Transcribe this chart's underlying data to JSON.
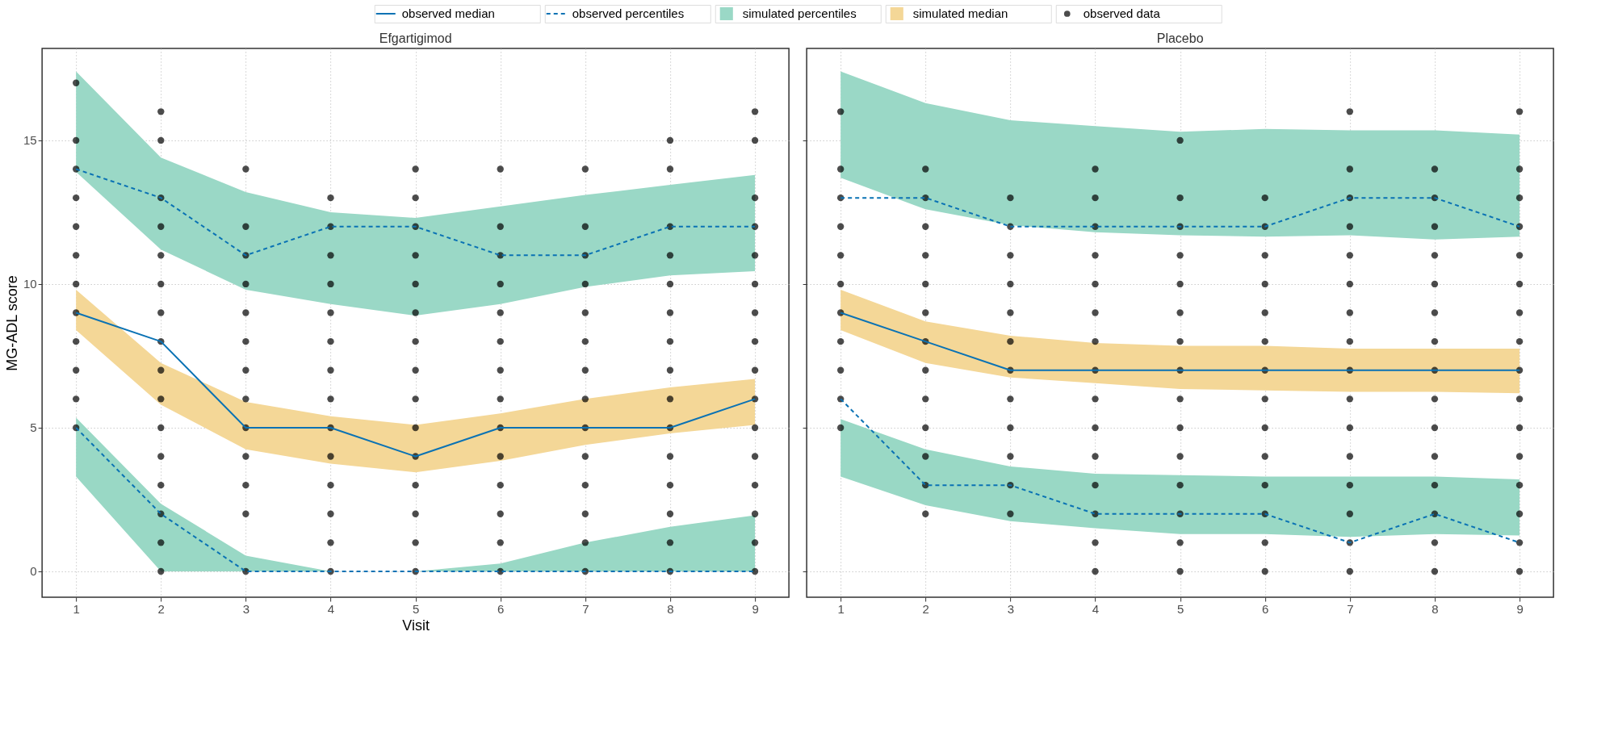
{
  "chart_data": [
    {
      "type": "line",
      "title": "Efgartigimod",
      "xlabel": "Visit",
      "ylabel": "MG-ADL score",
      "x": [
        1,
        2,
        3,
        4,
        5,
        6,
        7,
        8,
        9
      ],
      "xlim": [
        0.6,
        9.4
      ],
      "xticks": [
        1,
        2,
        3,
        4,
        5,
        6,
        7,
        8,
        9
      ],
      "ylim": [
        -0.9,
        18.2
      ],
      "yticks": [
        0,
        5,
        10,
        15
      ],
      "grid": true,
      "legend": "top",
      "series": [
        {
          "name": "simulated percentiles",
          "type": "area",
          "color": "#9ad8c6",
          "values": [
            null,
            null,
            null,
            null,
            null,
            null,
            null,
            null,
            null
          ],
          "lower": [
            13.9,
            11.2,
            9.8,
            9.3,
            8.9,
            9.3,
            9.9,
            10.3,
            10.45
          ],
          "upper": [
            17.4,
            14.4,
            13.2,
            12.5,
            12.3,
            12.7,
            13.1,
            13.45,
            13.8
          ]
        },
        {
          "type": "area",
          "color": "#99d8c5",
          "values": [
            null,
            null,
            null,
            null,
            null,
            null,
            null,
            null,
            null
          ],
          "lower": [
            3.3,
            0,
            0,
            0,
            0,
            0,
            0,
            0,
            0
          ],
          "upper": [
            5.35,
            2.35,
            0.55,
            0,
            0,
            0.27,
            1.0,
            1.55,
            1.95
          ]
        },
        {
          "name": "simulated median",
          "type": "area",
          "color": "#f4d797",
          "values": [
            null,
            null,
            null,
            null,
            null,
            null,
            null,
            null,
            null
          ],
          "lower": [
            8.4,
            5.8,
            4.25,
            3.75,
            3.45,
            3.85,
            4.4,
            4.8,
            5.1
          ],
          "upper": [
            9.8,
            7.25,
            5.9,
            5.4,
            5.1,
            5.5,
            6.0,
            6.4,
            6.7
          ]
        },
        {
          "name": "observed data",
          "type": "scatter",
          "color": "#000000",
          "marker": "circle",
          "x": [
            1,
            1,
            1,
            1,
            1,
            1,
            1,
            1,
            1,
            1,
            1,
            1,
            2,
            2,
            2,
            2,
            2,
            2,
            2,
            2,
            2,
            2,
            2,
            2,
            2,
            2,
            2,
            2,
            3,
            3,
            3,
            3,
            3,
            3,
            3,
            3,
            3,
            3,
            3,
            3,
            3,
            4,
            4,
            4,
            4,
            4,
            4,
            4,
            4,
            4,
            4,
            4,
            4,
            4,
            4,
            5,
            5,
            5,
            5,
            5,
            5,
            5,
            5,
            5,
            5,
            5,
            5,
            5,
            5,
            5,
            6,
            6,
            6,
            6,
            6,
            6,
            6,
            6,
            6,
            6,
            6,
            6,
            6,
            6,
            7,
            7,
            7,
            7,
            7,
            7,
            7,
            7,
            7,
            7,
            7,
            7,
            7,
            7,
            8,
            8,
            8,
            8,
            8,
            8,
            8,
            8,
            8,
            8,
            8,
            8,
            8,
            8,
            8,
            9,
            9,
            9,
            9,
            9,
            9,
            9,
            9,
            9,
            9,
            9,
            9,
            9,
            9,
            9,
            9
          ],
          "values": [
            17,
            15,
            14,
            13,
            12,
            11,
            10,
            9,
            8,
            7,
            6,
            5,
            16,
            15,
            13,
            12,
            11,
            10,
            9,
            8,
            7,
            6,
            5,
            4,
            3,
            2,
            1,
            0,
            14,
            12,
            11,
            10,
            9,
            8,
            7,
            6,
            5,
            4,
            3,
            2,
            0,
            13,
            12,
            11,
            10,
            9,
            8,
            7,
            6,
            5,
            4,
            3,
            2,
            1,
            0,
            14,
            13,
            12,
            11,
            10,
            9,
            8,
            7,
            6,
            5,
            4,
            3,
            2,
            1,
            0,
            14,
            12,
            11,
            10,
            9,
            8,
            7,
            6,
            5,
            4,
            3,
            2,
            1,
            0,
            14,
            12,
            11,
            10,
            9,
            8,
            7,
            6,
            5,
            4,
            3,
            2,
            1,
            0,
            15,
            14,
            12,
            11,
            10,
            9,
            8,
            7,
            6,
            5,
            4,
            3,
            2,
            1,
            0,
            16,
            15,
            13,
            12,
            11,
            10,
            9,
            8,
            7,
            6,
            5,
            4,
            3,
            2,
            1,
            0
          ]
        },
        {
          "name": "observed median",
          "line_style": "solid",
          "color": "#0a72b4",
          "values": [
            9,
            8,
            5,
            5,
            4,
            5,
            5,
            5,
            6
          ]
        },
        {
          "name": "observed percentiles",
          "line_style": "dashed",
          "color": "#0a72b4",
          "values": [
            14,
            13,
            11,
            12,
            12,
            11,
            11,
            12,
            12
          ]
        },
        {
          "line_style": "dashed",
          "color": "#0a72b4",
          "values": [
            5,
            2,
            0,
            0,
            0,
            0,
            0,
            0,
            0
          ]
        }
      ]
    },
    {
      "type": "line",
      "title": "Placebo",
      "x": [
        1,
        2,
        3,
        4,
        5,
        6,
        7,
        8,
        9
      ],
      "xlim": [
        0.6,
        9.4
      ],
      "xticks": [
        1,
        2,
        3,
        4,
        5,
        6,
        7,
        8,
        9
      ],
      "ylim": [
        -0.9,
        18.2
      ],
      "yticks": [
        0,
        5,
        10,
        15
      ],
      "grid": true,
      "tick_labels": "x",
      "series": [
        {
          "type": "area",
          "color": "#9ad8c6",
          "values": [
            null,
            null,
            null,
            null,
            null,
            null,
            null,
            null,
            null
          ],
          "lower": [
            13.7,
            12.6,
            12.05,
            11.8,
            11.7,
            11.65,
            11.7,
            11.55,
            11.65
          ],
          "upper": [
            17.4,
            16.3,
            15.7,
            15.5,
            15.3,
            15.4,
            15.35,
            15.35,
            15.2
          ]
        },
        {
          "type": "area",
          "color": "#99d8c5",
          "values": [
            null,
            null,
            null,
            null,
            null,
            null,
            null,
            null,
            null
          ],
          "lower": [
            3.3,
            2.3,
            1.75,
            1.5,
            1.3,
            1.3,
            1.2,
            1.3,
            1.25
          ],
          "upper": [
            5.3,
            4.25,
            3.65,
            3.4,
            3.35,
            3.3,
            3.3,
            3.3,
            3.2
          ]
        },
        {
          "type": "area",
          "color": "#f4d797",
          "values": [
            null,
            null,
            null,
            null,
            null,
            null,
            null,
            null,
            null
          ],
          "lower": [
            8.4,
            7.25,
            6.75,
            6.55,
            6.35,
            6.3,
            6.25,
            6.25,
            6.2
          ],
          "upper": [
            9.8,
            8.7,
            8.2,
            7.95,
            7.85,
            7.85,
            7.75,
            7.75,
            7.75
          ]
        },
        {
          "type": "scatter",
          "color": "#000000",
          "marker": "circle",
          "x": [
            1,
            1,
            1,
            1,
            1,
            1,
            1,
            1,
            1,
            1,
            1,
            2,
            2,
            2,
            2,
            2,
            2,
            2,
            2,
            2,
            2,
            2,
            2,
            2,
            3,
            3,
            3,
            3,
            3,
            3,
            3,
            3,
            3,
            3,
            3,
            3,
            4,
            4,
            4,
            4,
            4,
            4,
            4,
            4,
            4,
            4,
            4,
            4,
            4,
            4,
            4,
            5,
            5,
            5,
            5,
            5,
            5,
            5,
            5,
            5,
            5,
            5,
            5,
            5,
            5,
            5,
            6,
            6,
            6,
            6,
            6,
            6,
            6,
            6,
            6,
            6,
            6,
            6,
            6,
            6,
            7,
            7,
            7,
            7,
            7,
            7,
            7,
            7,
            7,
            7,
            7,
            7,
            7,
            7,
            7,
            7,
            8,
            8,
            8,
            8,
            8,
            8,
            8,
            8,
            8,
            8,
            8,
            8,
            8,
            8,
            8,
            9,
            9,
            9,
            9,
            9,
            9,
            9,
            9,
            9,
            9,
            9,
            9,
            9,
            9,
            9,
            9
          ],
          "values": [
            16,
            14,
            13,
            12,
            11,
            10,
            9,
            8,
            7,
            6,
            5,
            14,
            13,
            12,
            11,
            10,
            9,
            8,
            7,
            6,
            5,
            4,
            3,
            2,
            13,
            12,
            11,
            10,
            9,
            8,
            7,
            6,
            5,
            4,
            3,
            2,
            14,
            13,
            12,
            11,
            10,
            9,
            8,
            7,
            6,
            5,
            4,
            3,
            2,
            1,
            0,
            15,
            13,
            12,
            11,
            10,
            9,
            8,
            7,
            6,
            5,
            4,
            3,
            2,
            1,
            0,
            13,
            12,
            11,
            10,
            9,
            8,
            7,
            6,
            5,
            4,
            3,
            2,
            1,
            0,
            16,
            14,
            13,
            12,
            11,
            10,
            9,
            8,
            7,
            6,
            5,
            4,
            3,
            2,
            1,
            0,
            14,
            13,
            12,
            11,
            10,
            9,
            8,
            7,
            6,
            5,
            4,
            3,
            2,
            1,
            0,
            16,
            14,
            13,
            12,
            11,
            10,
            9,
            8,
            7,
            6,
            5,
            4,
            3,
            2,
            1,
            0
          ]
        },
        {
          "line_style": "solid",
          "color": "#0a72b4",
          "values": [
            9,
            8,
            7,
            7,
            7,
            7,
            7,
            7,
            7
          ]
        },
        {
          "line_style": "dashed",
          "color": "#0a72b4",
          "values": [
            13,
            13,
            12,
            12,
            12,
            12,
            13,
            13,
            12
          ]
        },
        {
          "line_style": "dashed",
          "color": "#0a72b4",
          "values": [
            6,
            3,
            3,
            2,
            2,
            2,
            1,
            2,
            1
          ]
        }
      ]
    }
  ]
}
